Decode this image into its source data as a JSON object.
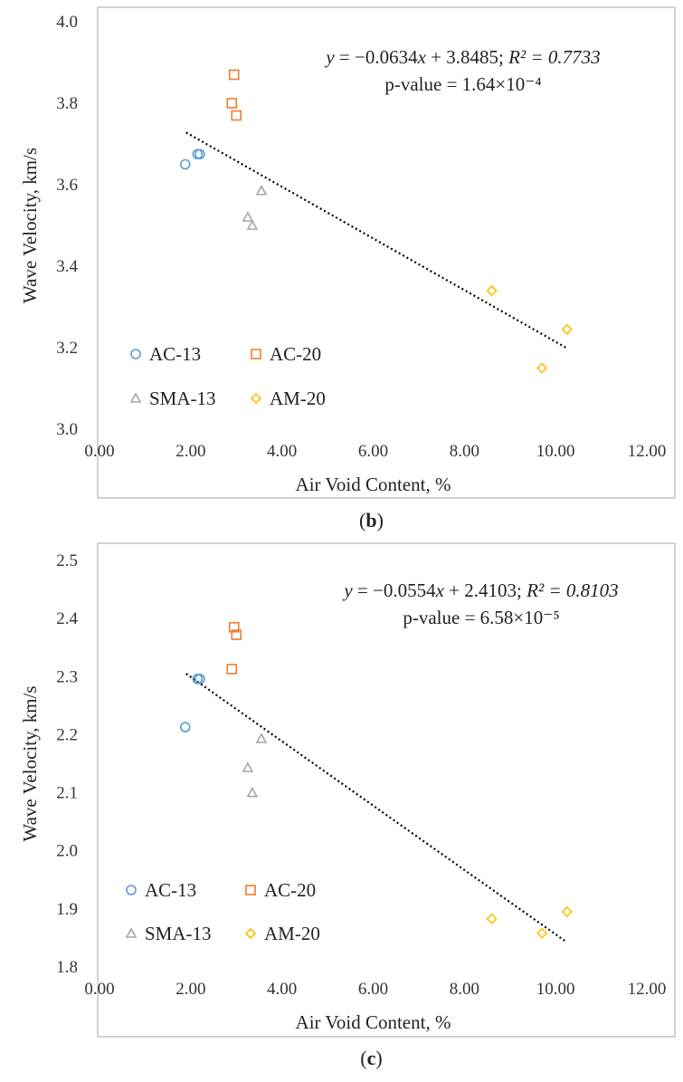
{
  "chart_data": [
    {
      "type": "scatter",
      "panel_label": "b",
      "xlabel": "Air Void Content, %",
      "ylabel": "Wave Velocity, km/s",
      "xlim": [
        0,
        12
      ],
      "ylim": [
        3.0,
        4.0
      ],
      "x_ticks": [
        "0.00",
        "2.00",
        "4.00",
        "6.00",
        "8.00",
        "10.00",
        "12.00"
      ],
      "y_ticks": [
        "3.0",
        "3.2",
        "3.4",
        "3.6",
        "3.8",
        "4.0"
      ],
      "equation": {
        "prefix": "y",
        "mid": " = −0.0634",
        "x": "x",
        "rest": " + 3.8485; ",
        "r2": "R² = 0.7733"
      },
      "p_value": "p-value = 1.64×10⁻⁴",
      "trendline": {
        "slope": -0.0634,
        "intercept": 3.8485,
        "x_range": [
          1.9,
          10.25
        ]
      },
      "series": [
        {
          "name": "AC-13",
          "marker": "circle",
          "color": "#5b9bd5",
          "x": [
            1.88,
            2.15,
            2.2
          ],
          "y": [
            3.65,
            3.675,
            3.675
          ]
        },
        {
          "name": "AC-20",
          "marker": "square",
          "color": "#ed7d31",
          "x": [
            2.9,
            2.95,
            3.0
          ],
          "y": [
            3.8,
            3.87,
            3.77
          ]
        },
        {
          "name": "SMA-13",
          "marker": "triangle",
          "color": "#a5a5a5",
          "x": [
            3.25,
            3.35,
            3.55
          ],
          "y": [
            3.52,
            3.5,
            3.585
          ]
        },
        {
          "name": "AM-20",
          "marker": "diamond",
          "color": "#ffc000",
          "x": [
            8.6,
            9.7,
            10.25
          ],
          "y": [
            3.34,
            3.15,
            3.245
          ]
        }
      ]
    },
    {
      "type": "scatter",
      "panel_label": "c",
      "xlabel": "Air Void Content, %",
      "ylabel": "Wave Velocity, km/s",
      "xlim": [
        0,
        12
      ],
      "ylim": [
        1.8,
        2.5
      ],
      "x_ticks": [
        "0.00",
        "2.00",
        "4.00",
        "6.00",
        "8.00",
        "10.00",
        "12.00"
      ],
      "y_ticks": [
        "1.8",
        "1.9",
        "2.0",
        "2.1",
        "2.2",
        "2.3",
        "2.4",
        "2.5"
      ],
      "equation": {
        "prefix": "y",
        "mid": " = −0.0554",
        "x": "x",
        "rest": " + 2.4103; ",
        "r2": "R² = 0.8103"
      },
      "p_value": "p-value = 6.58×10⁻⁵",
      "trendline": {
        "slope": -0.0554,
        "intercept": 2.4103,
        "x_range": [
          1.9,
          10.25
        ]
      },
      "series": [
        {
          "name": "AC-13",
          "marker": "circle",
          "color": "#5b9bd5",
          "x": [
            1.88,
            2.15,
            2.2
          ],
          "y": [
            2.213,
            2.296,
            2.296
          ]
        },
        {
          "name": "AC-20",
          "marker": "square",
          "color": "#ed7d31",
          "x": [
            2.9,
            2.95,
            3.0
          ],
          "y": [
            2.313,
            2.385,
            2.372
          ]
        },
        {
          "name": "SMA-13",
          "marker": "triangle",
          "color": "#a5a5a5",
          "x": [
            3.25,
            3.35,
            3.55
          ],
          "y": [
            2.143,
            2.1,
            2.193
          ]
        },
        {
          "name": "AM-20",
          "marker": "diamond",
          "color": "#ffc000",
          "x": [
            8.6,
            9.7,
            10.25
          ],
          "y": [
            1.883,
            1.858,
            1.895
          ]
        }
      ]
    }
  ]
}
